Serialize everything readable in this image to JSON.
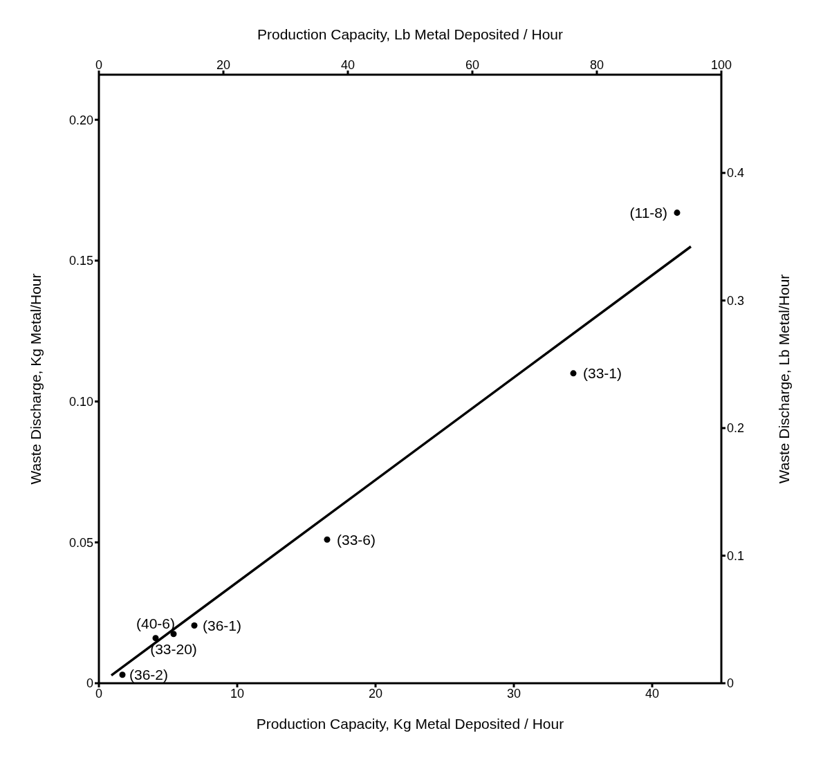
{
  "chart_data": {
    "type": "scatter",
    "xlabel": "Production  Capacity,  Kg  Metal  Deposited / Hour",
    "x2label": "Production  Capacity,  Lb  Metal  Deposited / Hour",
    "ylabel": "Waste  Discharge,  Kg  Metal/Hour",
    "y2label": "Waste  Discharge,  Lb  Metal/Hour",
    "xlim": [
      0,
      45
    ],
    "xticks": [
      0,
      10,
      20,
      30,
      40
    ],
    "x2lim": [
      0,
      100
    ],
    "x2ticks": [
      0,
      20,
      40,
      60,
      80,
      100
    ],
    "ylim": [
      0,
      0.216
    ],
    "yticks": [
      0,
      0.05,
      {
        "value": 0.1,
        "label": "0.10"
      },
      0.15,
      {
        "value": 0.2,
        "label": "0.20"
      }
    ],
    "y2lim": [
      0,
      0.477
    ],
    "y2ticks": [
      0,
      0.1,
      0.2,
      0.3,
      0.4
    ],
    "marker": "circle",
    "series": [
      {
        "color": "#000000",
        "x": [
          1.7,
          4.1,
          5.4,
          6.9,
          16.5,
          34.3,
          41.8
        ],
        "values": [
          0.003,
          0.016,
          0.0175,
          0.0205,
          0.051,
          0.11,
          0.167
        ]
      },
      {
        "type": "line",
        "color": "#000000",
        "marker": "none",
        "line_style": "solid",
        "x": [
          0.9,
          42.8
        ],
        "values": [
          0.0028,
          0.155
        ]
      }
    ],
    "annotations": [
      {
        "text": "(36-2)",
        "x": 1.7,
        "y": 0.003
      },
      {
        "text": "(40-6)",
        "x": 4.1,
        "y": 0.016
      },
      {
        "text": "(33-20)",
        "x": 5.4,
        "y": 0.0175
      },
      {
        "text": "(36-1)",
        "x": 6.9,
        "y": 0.0205
      },
      {
        "text": "(33-6)",
        "x": 16.5,
        "y": 0.051
      },
      {
        "text": "(33-1)",
        "x": 34.3,
        "y": 0.11
      },
      {
        "text": "(11-8)",
        "x": 41.8,
        "y": 0.167
      }
    ]
  }
}
